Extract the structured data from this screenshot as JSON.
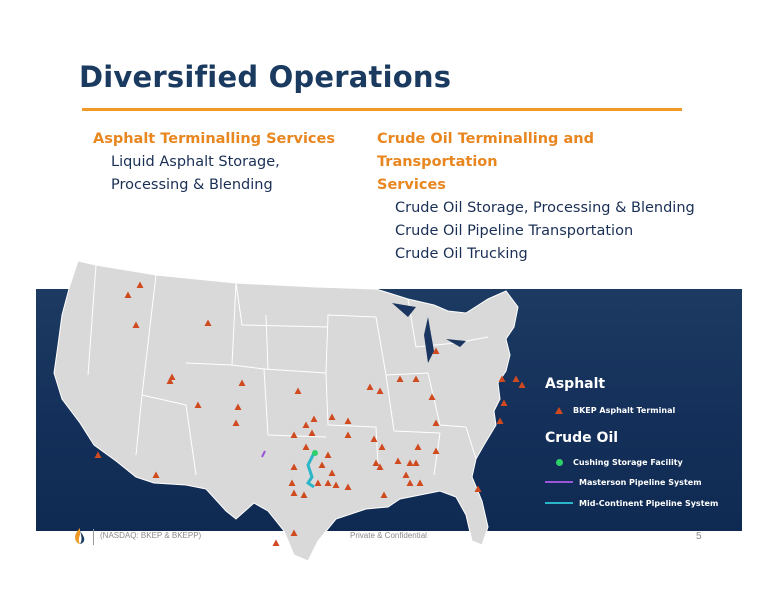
{
  "slide": {
    "title": "Diversified Operations",
    "accent_color": "#ef9a28",
    "title_color": "#1a3a60"
  },
  "left_column": {
    "heading": "Asphalt Terminalling Services",
    "items": [
      "Liquid Asphalt Storage,",
      "Processing & Blending"
    ]
  },
  "right_column": {
    "heading_line1": "Crude Oil Terminalling and Transportation",
    "heading_line2": "Services",
    "items": [
      "Crude Oil Storage, Processing & Blending",
      "Crude Oil Pipeline Transportation",
      "Crude Oil Trucking"
    ]
  },
  "legend": {
    "asphalt_heading": "Asphalt",
    "asphalt_terminal": "BKEP Asphalt Terminal",
    "crude_heading": "Crude Oil",
    "cushing": "Cushing Storage Facility",
    "masterson": "Masterson Pipeline System",
    "midcontinent": "Mid-Continent Pipeline System",
    "icons": {
      "asphalt_terminal": "triangle-marker-icon",
      "cushing": "green-dot-icon",
      "masterson": "purple-line-icon",
      "midcontinent": "teal-line-icon"
    },
    "colors": {
      "terminal": "#d04a20",
      "cushing": "#2ed06a",
      "masterson": "#9a55d8",
      "midcontinent": "#2bb5c8"
    }
  },
  "footer": {
    "ticker": "(NASDAQ: BKEP & BKEPP)",
    "confidentiality": "Private & Confidential",
    "page_number": "5"
  }
}
